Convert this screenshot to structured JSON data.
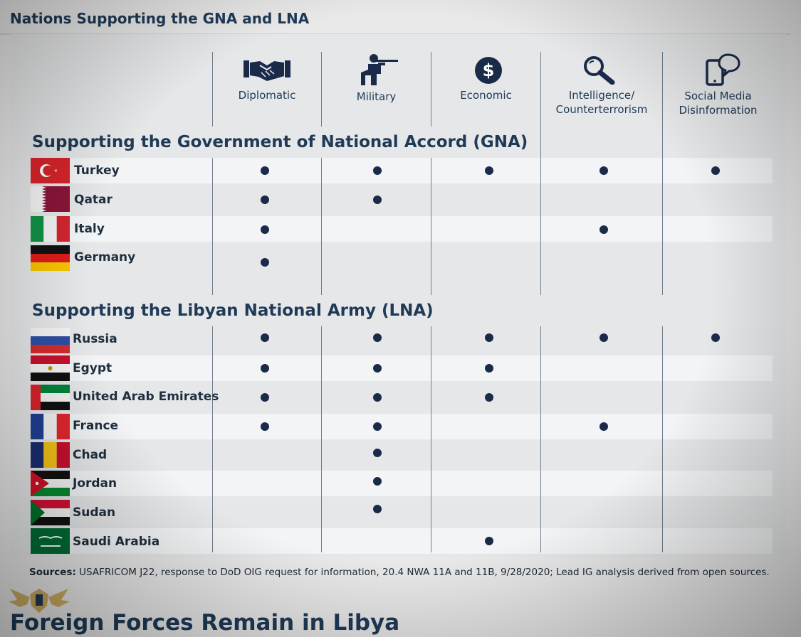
{
  "title": "Nations Supporting the GNA and LNA",
  "columns": [
    {
      "key": "diplomatic",
      "label": "Diplomatic",
      "icon": "handshake-icon"
    },
    {
      "key": "military",
      "label": "Military",
      "icon": "soldier-icon"
    },
    {
      "key": "economic",
      "label": "Economic",
      "icon": "dollar-icon"
    },
    {
      "key": "intelligence",
      "label": "Intelligence/\nCounterterrorism",
      "icon": "magnifier-icon"
    },
    {
      "key": "social",
      "label": "Social Media\nDisinformation",
      "icon": "phone-speech-icon"
    }
  ],
  "sections": [
    {
      "title": "Supporting the Government of National Accord (GNA)",
      "rows": [
        {
          "country": "Turkey",
          "support": [
            true,
            true,
            true,
            true,
            true
          ]
        },
        {
          "country": "Qatar",
          "support": [
            true,
            true,
            false,
            false,
            false
          ]
        },
        {
          "country": "Italy",
          "support": [
            true,
            false,
            false,
            true,
            false
          ]
        },
        {
          "country": "Germany",
          "support": [
            true,
            false,
            false,
            false,
            false
          ]
        }
      ]
    },
    {
      "title": "Supporting the Libyan National Army (LNA)",
      "rows": [
        {
          "country": "Russia",
          "support": [
            true,
            true,
            true,
            true,
            true
          ]
        },
        {
          "country": "Egypt",
          "support": [
            true,
            true,
            true,
            false,
            false
          ]
        },
        {
          "country": "United Arab Emirates",
          "support": [
            true,
            true,
            true,
            false,
            false
          ]
        },
        {
          "country": "France",
          "support": [
            true,
            true,
            false,
            true,
            false
          ]
        },
        {
          "country": "Chad",
          "support": [
            false,
            true,
            false,
            false,
            false
          ]
        },
        {
          "country": "Jordan",
          "support": [
            false,
            true,
            false,
            false,
            false
          ]
        },
        {
          "country": "Sudan",
          "support": [
            false,
            true,
            false,
            false,
            false
          ]
        },
        {
          "country": "Saudi Arabia",
          "support": [
            false,
            false,
            true,
            false,
            false
          ]
        }
      ]
    }
  ],
  "sources_label": "Sources:",
  "sources_text": " USAFRICOM J22, response to DoD OIG request for information, 20.4 NWA 11A and 11B, 9/28/2020; Lead IG analysis derived from open sources.",
  "bottom_heading": "Foreign Forces Remain in Libya",
  "colors": {
    "navy": "#1f3a57",
    "dot": "#1a2b4a",
    "band": "#f3f4f5",
    "panel": "#e6e7e8"
  }
}
